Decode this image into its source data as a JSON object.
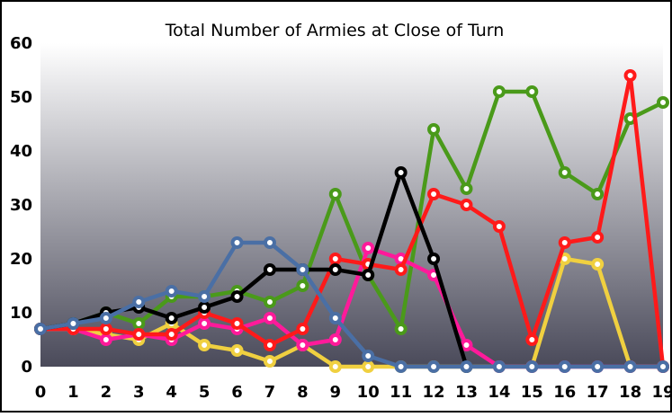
{
  "chart_data": {
    "type": "line",
    "title": "Total Number of Armies at Close of Turn",
    "xlabel": "",
    "ylabel": "",
    "x": [
      0,
      1,
      2,
      3,
      4,
      5,
      6,
      7,
      8,
      9,
      10,
      11,
      12,
      13,
      14,
      15,
      16,
      17,
      18,
      19
    ],
    "xlim": [
      0,
      19
    ],
    "ylim": [
      0,
      60
    ],
    "yticks": [
      0,
      10,
      20,
      30,
      40,
      50,
      60
    ],
    "grid": false,
    "legend": "none",
    "background": {
      "top": "#ffffff",
      "bottom": "#4a4a5a"
    },
    "series": [
      {
        "color": "#4a9a1a",
        "values": [
          7,
          8,
          10,
          8,
          13,
          13,
          14,
          12,
          15,
          32,
          17,
          7,
          44,
          33,
          51,
          51,
          36,
          32,
          46,
          49
        ]
      },
      {
        "color": "#f0d040",
        "values": [
          7,
          7,
          6,
          5,
          8,
          4,
          3,
          1,
          4,
          0,
          0,
          0,
          0,
          0,
          0,
          0,
          20,
          19,
          0,
          0
        ]
      },
      {
        "color": "#ff1a9a",
        "values": [
          7,
          7,
          5,
          6,
          5,
          8,
          7,
          9,
          4,
          5,
          22,
          20,
          17,
          4,
          0,
          0,
          0,
          0,
          0,
          0
        ]
      },
      {
        "color": "#ff1a1a",
        "values": [
          7,
          7,
          7,
          6,
          6,
          10,
          8,
          4,
          7,
          20,
          19,
          18,
          32,
          30,
          26,
          5,
          23,
          24,
          54,
          0
        ]
      },
      {
        "color": "#000000",
        "values": [
          7,
          8,
          10,
          11,
          9,
          11,
          13,
          18,
          18,
          18,
          17,
          36,
          20,
          0,
          null,
          null,
          null,
          null,
          null,
          null
        ]
      },
      {
        "color": "#4a6fa5",
        "values": [
          7,
          8,
          9,
          12,
          14,
          13,
          23,
          23,
          18,
          9,
          2,
          0,
          0,
          0,
          0,
          0,
          0,
          0,
          0,
          0
        ]
      }
    ]
  }
}
